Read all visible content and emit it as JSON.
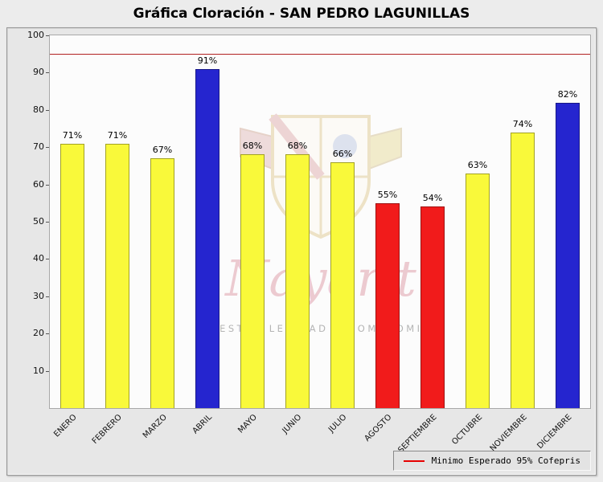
{
  "chart_data": {
    "type": "bar",
    "title": "Gráfica Cloración - SAN PEDRO LAGUNILLAS",
    "categories": [
      "ENERO",
      "FEBRERO",
      "MARZO",
      "ABRIL",
      "MAYO",
      "JUNIO",
      "JULIO",
      "AGOSTO",
      "SEPTIEMBRE",
      "OCTUBRE",
      "NOVIEMBRE",
      "DICIEMBRE"
    ],
    "values": [
      71,
      71,
      67,
      91,
      68,
      68,
      66,
      55,
      54,
      63,
      74,
      82
    ],
    "value_suffix": "%",
    "bar_colors": [
      "#f9f93a",
      "#f9f93a",
      "#f9f93a",
      "#2525cf",
      "#f9f93a",
      "#f9f93a",
      "#f9f93a",
      "#f11b1b",
      "#f11b1b",
      "#f9f93a",
      "#f9f93a",
      "#2525cf"
    ],
    "xlabel": "",
    "ylabel": "",
    "ylim": [
      0,
      100
    ],
    "yticks": [
      10,
      20,
      30,
      40,
      50,
      60,
      70,
      80,
      90,
      100
    ],
    "grid": false,
    "reference_line": {
      "value": 95,
      "color": "#b22222",
      "label": "Minimo Esperado 95% Cofepris"
    },
    "legend": {
      "position": "bottom-right",
      "swatch_color": "#e60000",
      "swatch_type": "line"
    }
  },
  "watermark": {
    "crest": "nayarit-coat-of-arms",
    "script_text": "Nayarit",
    "motto": "NUESTRA LEALTAD Y COMPROMISO"
  }
}
